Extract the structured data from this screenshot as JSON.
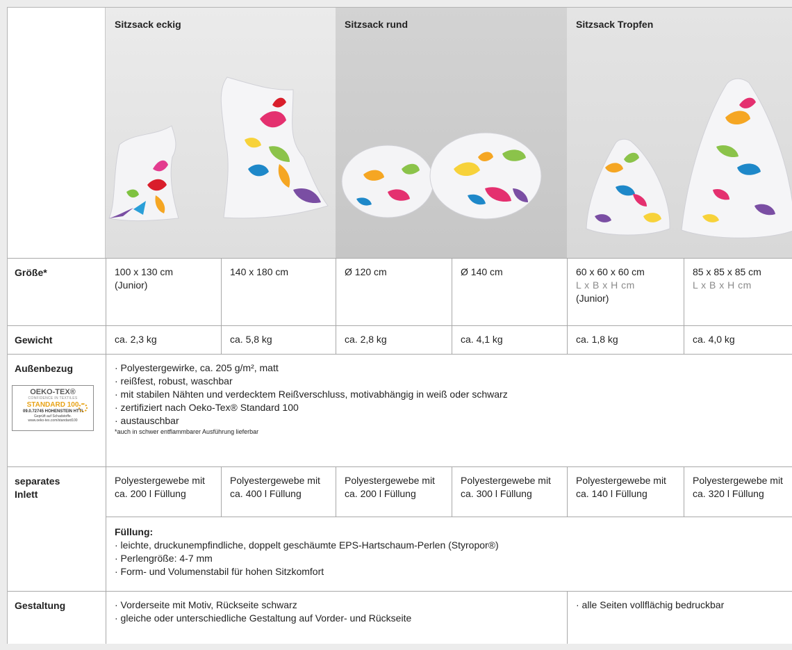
{
  "header": {
    "col1_title": "Sitzsack eckig",
    "col2_title": "Sitzsack rund",
    "col3_title": "Sitzsack Tropfen"
  },
  "rows": {
    "groesse": {
      "label": "Größe*",
      "c1": "100 x 130 cm",
      "c1_note": "(Junior)",
      "c2": "140 x 180 cm",
      "c3": "Ø 120 cm",
      "c4": "Ø 140 cm",
      "c5": "60 x 60 x 60 cm",
      "c5_dim": "L x B x H cm",
      "c5_note": "(Junior)",
      "c6": "85 x 85 x 85 cm",
      "c6_dim": "L x B x H cm"
    },
    "gewicht": {
      "label": "Gewicht",
      "c1": "ca. 2,3 kg",
      "c2": "ca. 5,8 kg",
      "c3": "ca. 2,8 kg",
      "c4": "ca. 4,1 kg",
      "c5": "ca. 1,8 kg",
      "c6": "ca. 4,0 kg"
    },
    "aussenbezug": {
      "label": "Außenbezug",
      "lines": [
        "· Polyestergewirke, ca. 205 g/m², matt",
        "· reißfest, robust, waschbar",
        "· mit stabilen Nähten und verdecktem Reißverschluss, motivabhängig in weiß oder schwarz",
        "· zertifiziert nach Oeko-Tex® Standard 100",
        "· austauschbar"
      ],
      "footnote": "*auch in schwer entflammbarer Ausführung lieferbar",
      "oeko": {
        "brand": "OEKO-TEX®",
        "tagline": "CONFIDENCE IN TEXTILES",
        "standard": "STANDARD 100",
        "cert": "09.0.72745 HOHENSTEIN HTTI",
        "tested": "Geprüft auf Schadstoffe.",
        "url": "www.oeko-tex.com/standard100"
      }
    },
    "inlett": {
      "label_line1": "separates",
      "label_line2": "Inlett",
      "cells": [
        {
          "l1": "Polyestergewebe mit",
          "l2": "ca. 200 l Füllung"
        },
        {
          "l1": "Polyestergewebe mit",
          "l2": "ca. 400 l Füllung"
        },
        {
          "l1": "Polyestergewebe mit",
          "l2": "ca. 200 l Füllung"
        },
        {
          "l1": "Polyestergewebe mit",
          "l2": "ca. 300 l Füllung"
        },
        {
          "l1": "Polyestergewebe mit",
          "l2": "ca. 140 l Füllung"
        },
        {
          "l1": "Polyestergewebe mit",
          "l2": "ca. 320 l Füllung"
        }
      ],
      "fill_title": "Füllung:",
      "fill_lines": [
        "· leichte, druckunempfindliche, doppelt geschäumte EPS-Hartschaum-Perlen (Styropor®)",
        "· Perlengröße: 4-7 mm",
        "· Form- und Volumenstabil für hohen Sitzkomfort"
      ]
    },
    "gestaltung": {
      "label": "Gestaltung",
      "left_lines": [
        "· Vorderseite mit Motiv, Rückseite schwarz",
        "· gleiche oder unterschiedliche Gestaltung auf Vorder- und Rückseite"
      ],
      "right": "· alle Seiten vollflächig bedruckbar"
    }
  }
}
